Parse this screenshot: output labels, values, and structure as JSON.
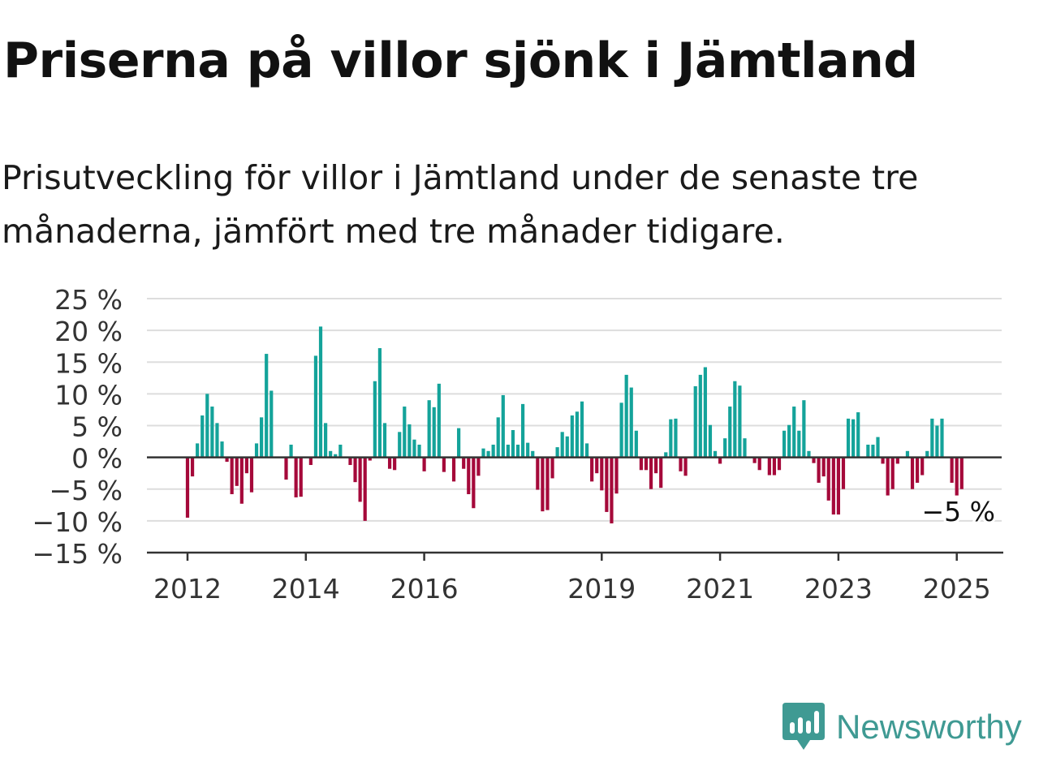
{
  "title": "Priserna på villor sjönk i Jämtland",
  "subtitle": "Prisutveckling för villor i Jämtland under de senaste tre månaderna, jämfört med tre månader tidigare.",
  "brand": {
    "name": "Newsworthy",
    "icon": "newsworthy-logo-icon",
    "color": "#3f9a93"
  },
  "colors": {
    "positive": "#14a39a",
    "negative": "#a5093a",
    "grid": "#dddddd",
    "axis": "#333333"
  },
  "chart_data": {
    "type": "bar",
    "start": "2012-01",
    "frequency": "monthly",
    "ylim": [
      -15,
      25
    ],
    "yticks": [
      25,
      20,
      15,
      10,
      5,
      0,
      -5,
      -10,
      -15
    ],
    "ytick_labels": [
      "25 %",
      "20 %",
      "15 %",
      "10 %",
      "5 %",
      "0 %",
      "−5 %",
      "−10 %",
      "−15 %"
    ],
    "xtick_labels": [
      "2012",
      "2014",
      "2016",
      "2019",
      "2021",
      "2023",
      "2025"
    ],
    "annotation": "−5 %",
    "values": [
      -9.5,
      -3,
      2.2,
      6.6,
      10,
      8,
      5.4,
      2.5,
      -0.7,
      -5.8,
      -4.5,
      -7.3,
      -2.5,
      -5.5,
      2.2,
      6.3,
      16.3,
      10.5,
      0,
      0,
      -3.5,
      2,
      -6.3,
      -6.2,
      0,
      -1.2,
      16,
      20.6,
      5.4,
      1,
      0.5,
      2,
      0,
      -1.2,
      -3.9,
      -7,
      -10,
      -0.5,
      12,
      17.2,
      5.4,
      -1.8,
      -2,
      4,
      8,
      5.2,
      2.8,
      2,
      -2.2,
      9,
      7.9,
      11.6,
      -2.3,
      0,
      -3.8,
      4.6,
      -1.8,
      -5.8,
      -8,
      -2.9,
      1.4,
      1,
      2,
      6.3,
      9.8,
      2,
      4.3,
      2,
      8.4,
      2.3,
      1,
      -5.1,
      -8.5,
      -8.3,
      -3.3,
      1.6,
      4,
      3.3,
      6.6,
      7.2,
      8.8,
      2.2,
      -3.8,
      -2.5,
      -5.2,
      -8.6,
      -10.4,
      -5.7,
      8.6,
      13,
      11,
      4.2,
      -2,
      -2,
      -5,
      -2.5,
      -4.8,
      0.8,
      6,
      6.1,
      -2.2,
      -2.9,
      0,
      11.2,
      13,
      14.2,
      5.1,
      1,
      -1,
      3,
      8,
      12,
      11.3,
      3,
      0,
      -0.9,
      -2,
      0,
      -2.8,
      -2.8,
      -2,
      4.2,
      5.1,
      8,
      4.2,
      9,
      1,
      -0.9,
      -4,
      -3,
      -6.8,
      -9,
      -9,
      -5,
      6.1,
      6,
      7.1,
      0,
      2,
      2,
      3.2,
      -1,
      -6,
      -5,
      -1,
      0,
      1,
      -5,
      -4,
      -2.8,
      1,
      6.1,
      5,
      6.1,
      0,
      -4,
      -6,
      -5
    ]
  }
}
